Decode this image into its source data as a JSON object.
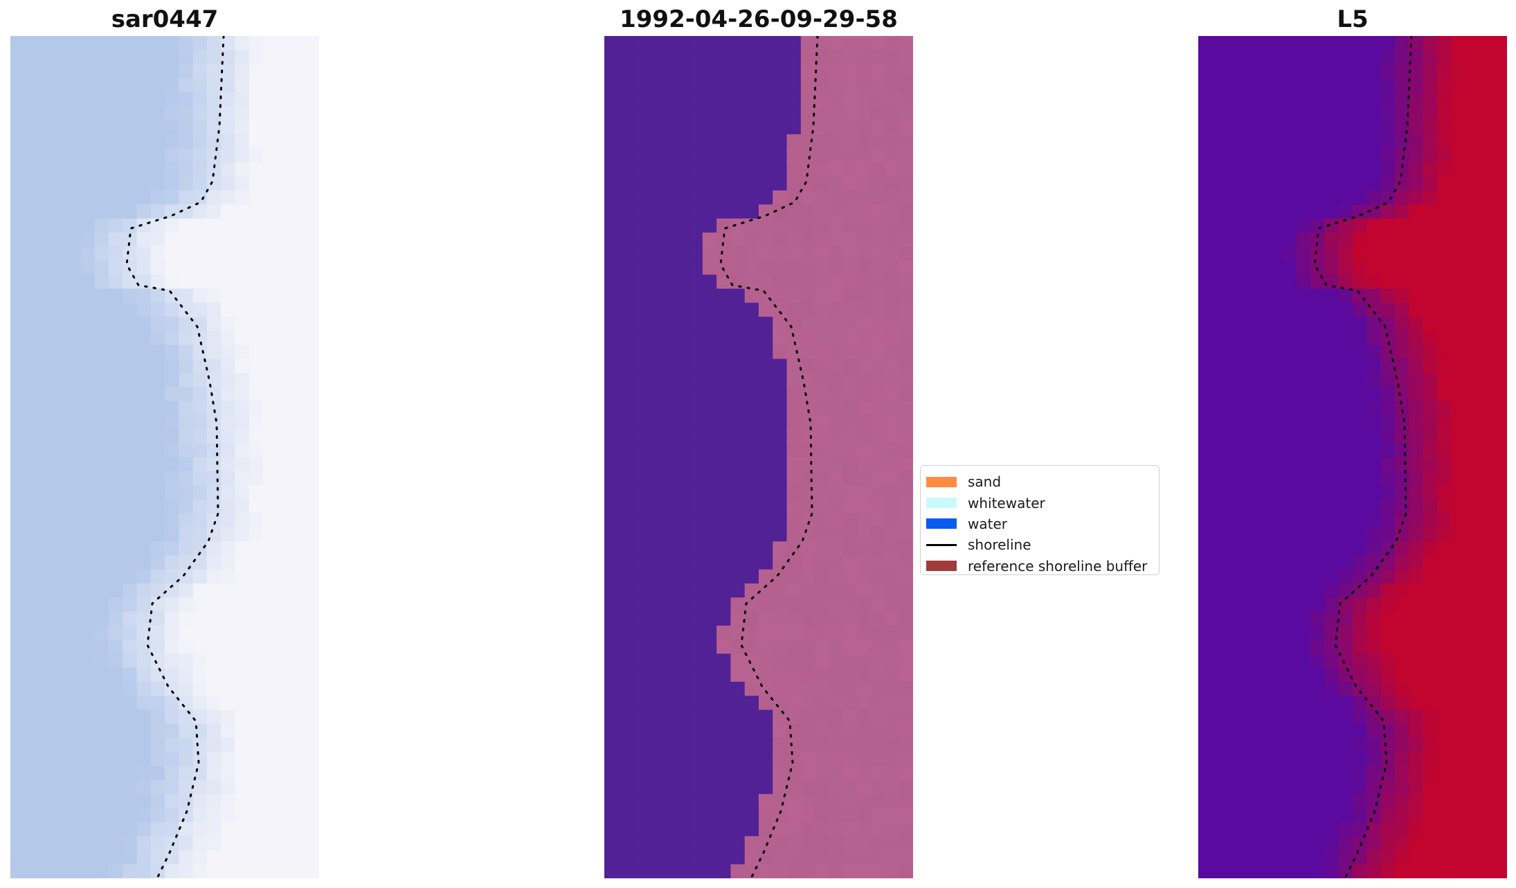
{
  "panels": [
    {
      "id": "rgb",
      "title": "sar0447"
    },
    {
      "id": "classified",
      "title": "1992-04-26-09-29-58"
    },
    {
      "id": "index",
      "title": "L5"
    }
  ],
  "legend": {
    "items": [
      {
        "label": "sand",
        "color": "#ff8c42",
        "kind": "patch"
      },
      {
        "label": "whitewater",
        "color": "#c8fafa",
        "kind": "patch"
      },
      {
        "label": "water",
        "color": "#0a5cf0",
        "kind": "patch"
      },
      {
        "label": "shoreline",
        "color": "#000000",
        "kind": "line"
      },
      {
        "label": "reference shoreline buffer",
        "color": "#a13a3a",
        "kind": "patch"
      }
    ]
  },
  "colors": {
    "classified_water": "#532196",
    "classified_sand": "#b4608f",
    "index_low": "#5a0a9e",
    "index_high": "#c2052e",
    "rgb_water": "#b4c8ea",
    "rgb_land": "#f4f4fa",
    "shoreline": "#000000"
  }
}
